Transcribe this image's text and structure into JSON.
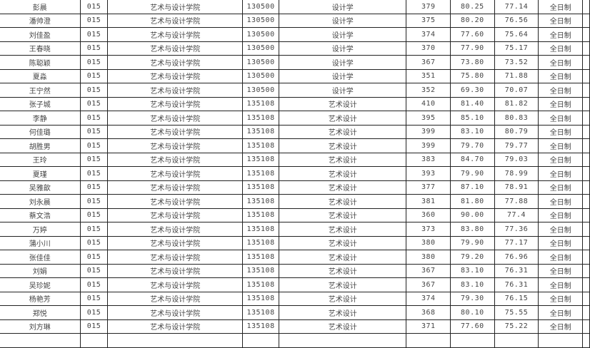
{
  "rows": [
    [
      "彭晨",
      "015",
      "艺术与设计学院",
      "130500",
      "设计学",
      "379",
      "80.25",
      "77.14",
      "全日制"
    ],
    [
      "潘帅澄",
      "015",
      "艺术与设计学院",
      "130500",
      "设计学",
      "375",
      "80.20",
      "76.56",
      "全日制"
    ],
    [
      "刘佳盈",
      "015",
      "艺术与设计学院",
      "130500",
      "设计学",
      "374",
      "77.60",
      "75.64",
      "全日制"
    ],
    [
      "王春晓",
      "015",
      "艺术与设计学院",
      "130500",
      "设计学",
      "370",
      "77.90",
      "75.17",
      "全日制"
    ],
    [
      "陈聪颖",
      "015",
      "艺术与设计学院",
      "130500",
      "设计学",
      "367",
      "73.80",
      "73.52",
      "全日制"
    ],
    [
      "夏淼",
      "015",
      "艺术与设计学院",
      "130500",
      "设计学",
      "351",
      "75.80",
      "71.88",
      "全日制"
    ],
    [
      "王宁然",
      "015",
      "艺术与设计学院",
      "130500",
      "设计学",
      "352",
      "69.30",
      "70.07",
      "全日制"
    ],
    [
      "张子城",
      "015",
      "艺术与设计学院",
      "135108",
      "艺术设计",
      "410",
      "81.40",
      "81.82",
      "全日制"
    ],
    [
      "李静",
      "015",
      "艺术与设计学院",
      "135108",
      "艺术设计",
      "395",
      "85.10",
      "80.83",
      "全日制"
    ],
    [
      "何佳璐",
      "015",
      "艺术与设计学院",
      "135108",
      "艺术设计",
      "399",
      "83.10",
      "80.79",
      "全日制"
    ],
    [
      "胡胜男",
      "015",
      "艺术与设计学院",
      "135108",
      "艺术设计",
      "399",
      "79.70",
      "79.77",
      "全日制"
    ],
    [
      "王玲",
      "015",
      "艺术与设计学院",
      "135108",
      "艺术设计",
      "383",
      "84.70",
      "79.03",
      "全日制"
    ],
    [
      "夏瑾",
      "015",
      "艺术与设计学院",
      "135108",
      "艺术设计",
      "393",
      "79.90",
      "78.99",
      "全日制"
    ],
    [
      "吴雅歆",
      "015",
      "艺术与设计学院",
      "135108",
      "艺术设计",
      "377",
      "87.10",
      "78.91",
      "全日制"
    ],
    [
      "刘永晨",
      "015",
      "艺术与设计学院",
      "135108",
      "艺术设计",
      "381",
      "81.80",
      "77.88",
      "全日制"
    ],
    [
      "蔡文浩",
      "015",
      "艺术与设计学院",
      "135108",
      "艺术设计",
      "360",
      "90.00",
      "77.4",
      "全日制"
    ],
    [
      "万婷",
      "015",
      "艺术与设计学院",
      "135108",
      "艺术设计",
      "373",
      "83.80",
      "77.36",
      "全日制"
    ],
    [
      "蒲小川",
      "015",
      "艺术与设计学院",
      "135108",
      "艺术设计",
      "380",
      "79.90",
      "77.17",
      "全日制"
    ],
    [
      "张佳佳",
      "015",
      "艺术与设计学院",
      "135108",
      "艺术设计",
      "380",
      "79.20",
      "76.96",
      "全日制"
    ],
    [
      "刘娟",
      "015",
      "艺术与设计学院",
      "135108",
      "艺术设计",
      "367",
      "83.10",
      "76.31",
      "全日制"
    ],
    [
      "吴珍妮",
      "015",
      "艺术与设计学院",
      "135108",
      "艺术设计",
      "367",
      "83.10",
      "76.31",
      "全日制"
    ],
    [
      "杨艳芳",
      "015",
      "艺术与设计学院",
      "135108",
      "艺术设计",
      "374",
      "79.30",
      "76.15",
      "全日制"
    ],
    [
      "郑悦",
      "015",
      "艺术与设计学院",
      "135108",
      "艺术设计",
      "368",
      "80.10",
      "75.55",
      "全日制"
    ],
    [
      "刘方琳",
      "015",
      "艺术与设计学院",
      "135108",
      "艺术设计",
      "371",
      "77.60",
      "75.22",
      "全日制"
    ]
  ]
}
